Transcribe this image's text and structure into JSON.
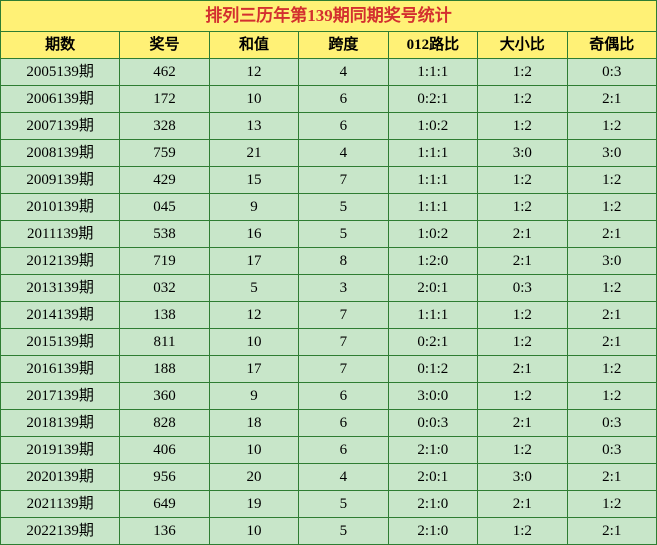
{
  "title": "排列三历年第139期同期奖号统计",
  "headers": [
    "期数",
    "奖号",
    "和值",
    "跨度",
    "012路比",
    "大小比",
    "奇偶比"
  ],
  "rows": [
    [
      "2005139期",
      "462",
      "12",
      "4",
      "1:1:1",
      "1:2",
      "0:3"
    ],
    [
      "2006139期",
      "172",
      "10",
      "6",
      "0:2:1",
      "1:2",
      "2:1"
    ],
    [
      "2007139期",
      "328",
      "13",
      "6",
      "1:0:2",
      "1:2",
      "1:2"
    ],
    [
      "2008139期",
      "759",
      "21",
      "4",
      "1:1:1",
      "3:0",
      "3:0"
    ],
    [
      "2009139期",
      "429",
      "15",
      "7",
      "1:1:1",
      "1:2",
      "1:2"
    ],
    [
      "2010139期",
      "045",
      "9",
      "5",
      "1:1:1",
      "1:2",
      "1:2"
    ],
    [
      "2011139期",
      "538",
      "16",
      "5",
      "1:0:2",
      "2:1",
      "2:1"
    ],
    [
      "2012139期",
      "719",
      "17",
      "8",
      "1:2:0",
      "2:1",
      "3:0"
    ],
    [
      "2013139期",
      "032",
      "5",
      "3",
      "2:0:1",
      "0:3",
      "1:2"
    ],
    [
      "2014139期",
      "138",
      "12",
      "7",
      "1:1:1",
      "1:2",
      "2:1"
    ],
    [
      "2015139期",
      "811",
      "10",
      "7",
      "0:2:1",
      "1:2",
      "2:1"
    ],
    [
      "2016139期",
      "188",
      "17",
      "7",
      "0:1:2",
      "2:1",
      "1:2"
    ],
    [
      "2017139期",
      "360",
      "9",
      "6",
      "3:0:0",
      "1:2",
      "1:2"
    ],
    [
      "2018139期",
      "828",
      "18",
      "6",
      "0:0:3",
      "2:1",
      "0:3"
    ],
    [
      "2019139期",
      "406",
      "10",
      "6",
      "2:1:0",
      "1:2",
      "0:3"
    ],
    [
      "2020139期",
      "956",
      "20",
      "4",
      "2:0:1",
      "3:0",
      "2:1"
    ],
    [
      "2021139期",
      "649",
      "19",
      "5",
      "2:1:0",
      "2:1",
      "1:2"
    ],
    [
      "2022139期",
      "136",
      "10",
      "5",
      "2:1:0",
      "1:2",
      "2:1"
    ]
  ],
  "colors": {
    "header_bg": "#fff176",
    "title_text": "#d32f2f",
    "data_bg": "#c8e6c9",
    "border": "#2e7d32"
  }
}
